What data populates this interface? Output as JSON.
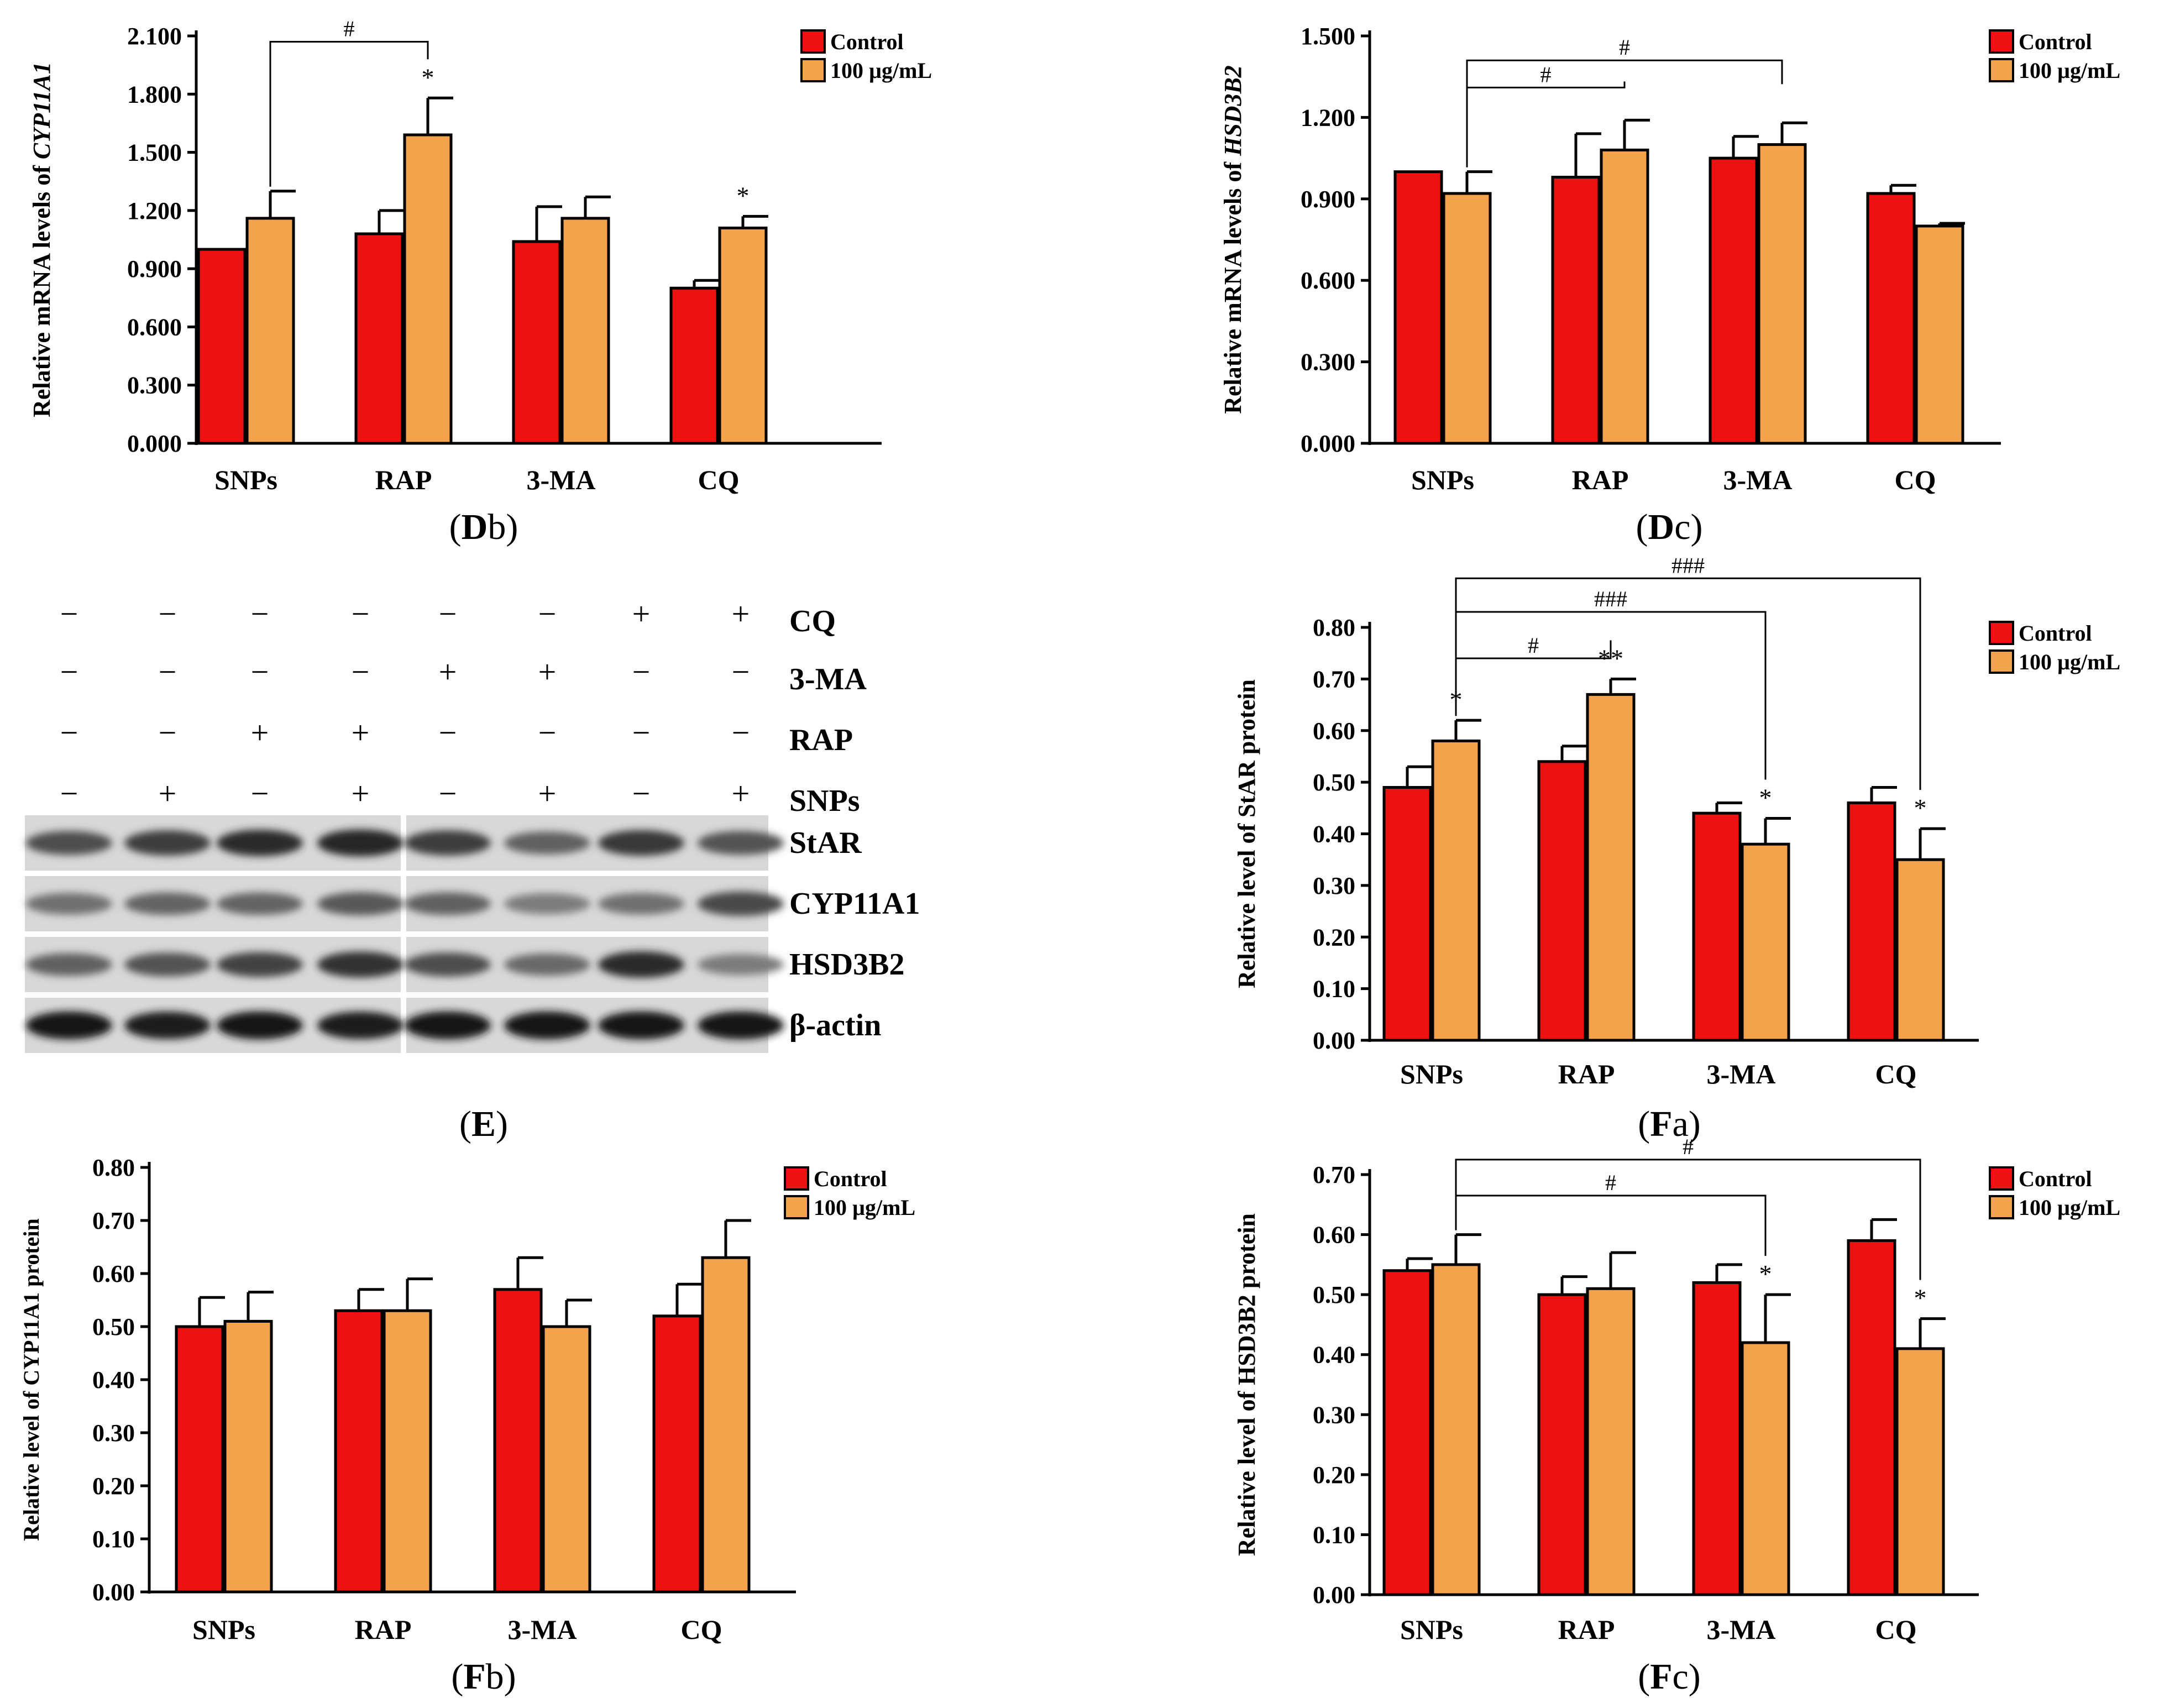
{
  "colors": {
    "control": "#ee1111",
    "treated": "#f5a24d",
    "axis": "#000000"
  },
  "chart_data": [
    {
      "id": "Db",
      "type": "bar",
      "panel_prefix": "D",
      "panel_suffix": "b",
      "categories": [
        "SNPs",
        "RAP",
        "3-MA",
        "CQ"
      ],
      "ylabel_prefix": "Relative mRNA levels of ",
      "ylabel_gene": "CYP11A1",
      "ylim": [
        0,
        2.1
      ],
      "yticks": [
        "0.000",
        "0.300",
        "0.600",
        "0.900",
        "1.200",
        "1.500",
        "1.800",
        "2.100"
      ],
      "legend": [
        "Control",
        "100 µg/mL"
      ],
      "series": [
        {
          "name": "Control",
          "values": [
            1.0,
            1.08,
            1.04,
            0.8
          ],
          "errors": [
            0.0,
            0.12,
            0.18,
            0.04
          ]
        },
        {
          "name": "100 µg/mL",
          "values": [
            1.16,
            1.59,
            1.16,
            1.11
          ],
          "errors": [
            0.14,
            0.19,
            0.11,
            0.06
          ]
        }
      ],
      "stars": [
        {
          "series": 1,
          "category": 1,
          "text": "*"
        },
        {
          "series": 1,
          "category": 3,
          "text": "*"
        }
      ],
      "brackets": [
        {
          "from": 0,
          "to": 1,
          "y": 2.07,
          "text": "#"
        }
      ]
    },
    {
      "id": "Dc",
      "type": "bar",
      "panel_prefix": "D",
      "panel_suffix": "c",
      "categories": [
        "SNPs",
        "RAP",
        "3-MA",
        "CQ"
      ],
      "ylabel_prefix": "Relative mRNA levels of ",
      "ylabel_gene": "HSD3B2",
      "ylim": [
        0,
        1.5
      ],
      "yticks": [
        "0.000",
        "0.300",
        "0.600",
        "0.900",
        "1.200",
        "1.500"
      ],
      "legend": [
        "Control",
        "100 µg/mL"
      ],
      "series": [
        {
          "name": "Control",
          "values": [
            1.0,
            0.98,
            1.05,
            0.92
          ],
          "errors": [
            0.0,
            0.16,
            0.08,
            0.03
          ]
        },
        {
          "name": "100 µg/mL",
          "values": [
            0.92,
            1.08,
            1.1,
            0.8
          ],
          "errors": [
            0.08,
            0.11,
            0.08,
            0.01
          ]
        }
      ],
      "stars": [],
      "brackets": [
        {
          "from": 0,
          "to": 2,
          "y": 1.41,
          "text": "#"
        },
        {
          "from": 0,
          "to": 1,
          "y": 1.31,
          "text": "#"
        }
      ]
    },
    {
      "id": "Fa",
      "type": "bar",
      "panel_prefix": "F",
      "panel_suffix": "a",
      "categories": [
        "SNPs",
        "RAP",
        "3-MA",
        "CQ"
      ],
      "ylabel_prefix": "Relative level of StAR protein",
      "ylabel_gene": "",
      "ylim": [
        0,
        0.8
      ],
      "yticks": [
        "0.00",
        "0.10",
        "0.20",
        "0.30",
        "0.40",
        "0.50",
        "0.60",
        "0.70",
        "0.80"
      ],
      "legend": [
        "Control",
        "100 µg/mL"
      ],
      "series": [
        {
          "name": "Control",
          "values": [
            0.49,
            0.54,
            0.44,
            0.46
          ],
          "errors": [
            0.04,
            0.03,
            0.02,
            0.03
          ]
        },
        {
          "name": "100 µg/mL",
          "values": [
            0.58,
            0.67,
            0.38,
            0.35
          ],
          "errors": [
            0.04,
            0.03,
            0.05,
            0.06
          ]
        }
      ],
      "stars": [
        {
          "series": 1,
          "category": 0,
          "text": "*"
        },
        {
          "series": 1,
          "category": 1,
          "text": "**"
        },
        {
          "series": 1,
          "category": 2,
          "text": "*"
        },
        {
          "series": 1,
          "category": 3,
          "text": "*"
        }
      ],
      "brackets": [
        {
          "from": 0,
          "to": 3,
          "y": 0.895,
          "text": "###"
        },
        {
          "from": 0,
          "to": 2,
          "y": 0.83,
          "text": "###"
        },
        {
          "from": 0,
          "to": 1,
          "y": 0.74,
          "text": "#"
        }
      ]
    },
    {
      "id": "Fb",
      "type": "bar",
      "panel_prefix": "F",
      "panel_suffix": "b",
      "categories": [
        "SNPs",
        "RAP",
        "3-MA",
        "CQ"
      ],
      "ylabel_prefix": "Relative level of CYP11A1 protein",
      "ylabel_gene": "",
      "ylim": [
        0,
        0.8
      ],
      "yticks": [
        "0.00",
        "0.10",
        "0.20",
        "0.30",
        "0.40",
        "0.50",
        "0.60",
        "0.70",
        "0.80"
      ],
      "legend": [
        "Control",
        "100 µg/mL"
      ],
      "series": [
        {
          "name": "Control",
          "values": [
            0.5,
            0.53,
            0.57,
            0.52
          ],
          "errors": [
            0.055,
            0.04,
            0.06,
            0.06
          ]
        },
        {
          "name": "100 µg/mL",
          "values": [
            0.51,
            0.53,
            0.5,
            0.63
          ],
          "errors": [
            0.055,
            0.06,
            0.05,
            0.07
          ]
        }
      ],
      "stars": [],
      "brackets": []
    },
    {
      "id": "Fc",
      "type": "bar",
      "panel_prefix": "F",
      "panel_suffix": "c",
      "categories": [
        "SNPs",
        "RAP",
        "3-MA",
        "CQ"
      ],
      "ylabel_prefix": "Relative level of HSD3B2 protein",
      "ylabel_gene": "",
      "ylim": [
        0,
        0.7
      ],
      "yticks": [
        "0.00",
        "0.10",
        "0.20",
        "0.30",
        "0.40",
        "0.50",
        "0.60",
        "0.70"
      ],
      "legend": [
        "Control",
        "100 µg/mL"
      ],
      "series": [
        {
          "name": "Control",
          "values": [
            0.54,
            0.5,
            0.52,
            0.59
          ],
          "errors": [
            0.02,
            0.03,
            0.03,
            0.035
          ]
        },
        {
          "name": "100 µg/mL",
          "values": [
            0.55,
            0.51,
            0.42,
            0.41
          ],
          "errors": [
            0.05,
            0.06,
            0.08,
            0.05
          ]
        }
      ],
      "stars": [
        {
          "series": 1,
          "category": 2,
          "text": "*"
        },
        {
          "series": 1,
          "category": 3,
          "text": "*"
        }
      ],
      "brackets": [
        {
          "from": 0,
          "to": 3,
          "y": 0.725,
          "text": "#"
        },
        {
          "from": 0,
          "to": 2,
          "y": 0.665,
          "text": "#"
        }
      ]
    }
  ],
  "blot": {
    "panel_prefix": "E",
    "panel_suffix": "",
    "treatments": [
      {
        "label": "CQ",
        "signs": [
          "−",
          "−",
          "−",
          "−",
          "−",
          "−",
          "+",
          "+"
        ]
      },
      {
        "label": "3-MA",
        "signs": [
          "−",
          "−",
          "−",
          "−",
          "+",
          "+",
          "−",
          "−"
        ]
      },
      {
        "label": "RAP",
        "signs": [
          "−",
          "−",
          "+",
          "+",
          "−",
          "−",
          "−",
          "−"
        ]
      },
      {
        "label": "SNPs",
        "signs": [
          "−",
          "+",
          "−",
          "+",
          "−",
          "+",
          "−",
          "+"
        ]
      }
    ],
    "bands": [
      {
        "label": "StAR",
        "intensity": [
          0.7,
          0.78,
          0.85,
          0.88,
          0.78,
          0.62,
          0.8,
          0.68
        ]
      },
      {
        "label": "CYP11A1",
        "intensity": [
          0.55,
          0.6,
          0.6,
          0.65,
          0.62,
          0.5,
          0.55,
          0.72
        ]
      },
      {
        "label": "HSD3B2",
        "intensity": [
          0.62,
          0.68,
          0.75,
          0.82,
          0.7,
          0.58,
          0.85,
          0.5
        ]
      },
      {
        "label": "β-actin",
        "intensity": [
          0.95,
          0.92,
          0.95,
          0.92,
          0.95,
          0.95,
          0.95,
          0.95
        ]
      }
    ]
  }
}
